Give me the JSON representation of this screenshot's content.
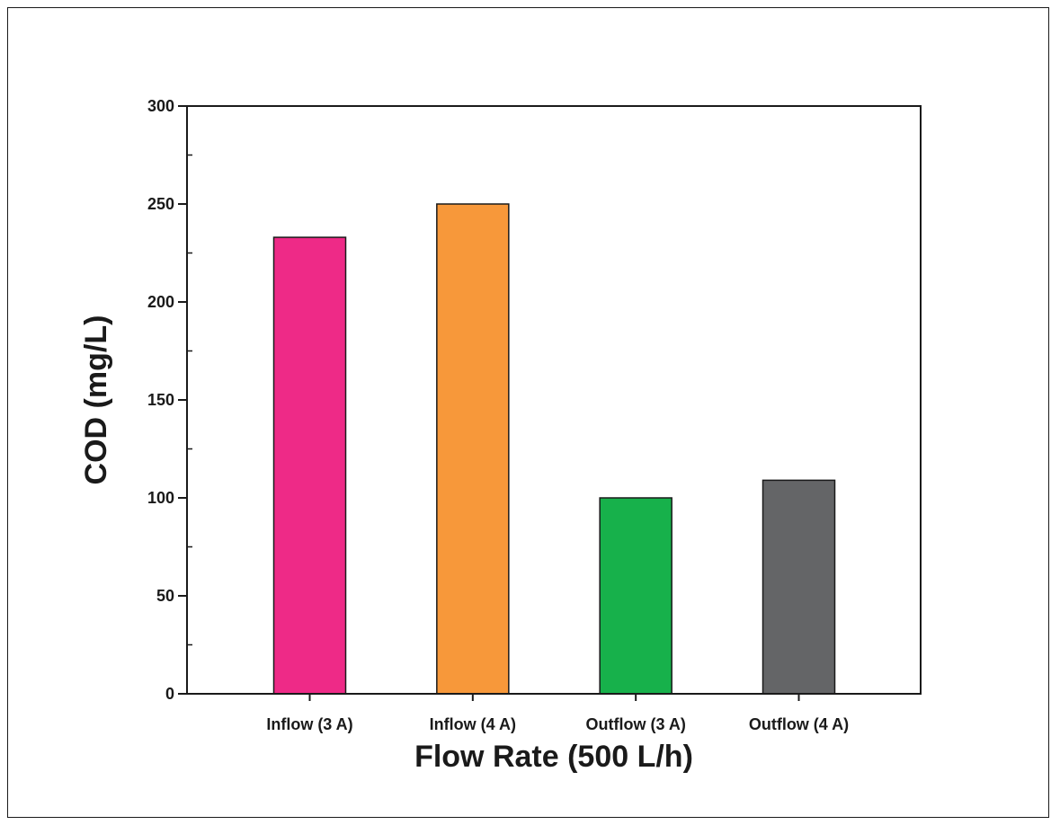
{
  "chart_data": {
    "type": "bar",
    "title": "",
    "xlabel": "Flow Rate (500 L/h)",
    "ylabel": "COD (mg/L)",
    "categories": [
      "Inflow (3 A)",
      "Inflow (4 A)",
      "Outflow (3 A)",
      "Outflow (4 A)"
    ],
    "values": [
      233,
      250,
      100,
      109
    ],
    "bar_colors": [
      "#ee2a87",
      "#f7983a",
      "#17b14b",
      "#646567"
    ],
    "ylim": [
      0,
      300
    ],
    "yticks": [
      0,
      50,
      100,
      150,
      200,
      250,
      300
    ],
    "y_minor_step": 25,
    "grid": false,
    "legend": "none"
  }
}
